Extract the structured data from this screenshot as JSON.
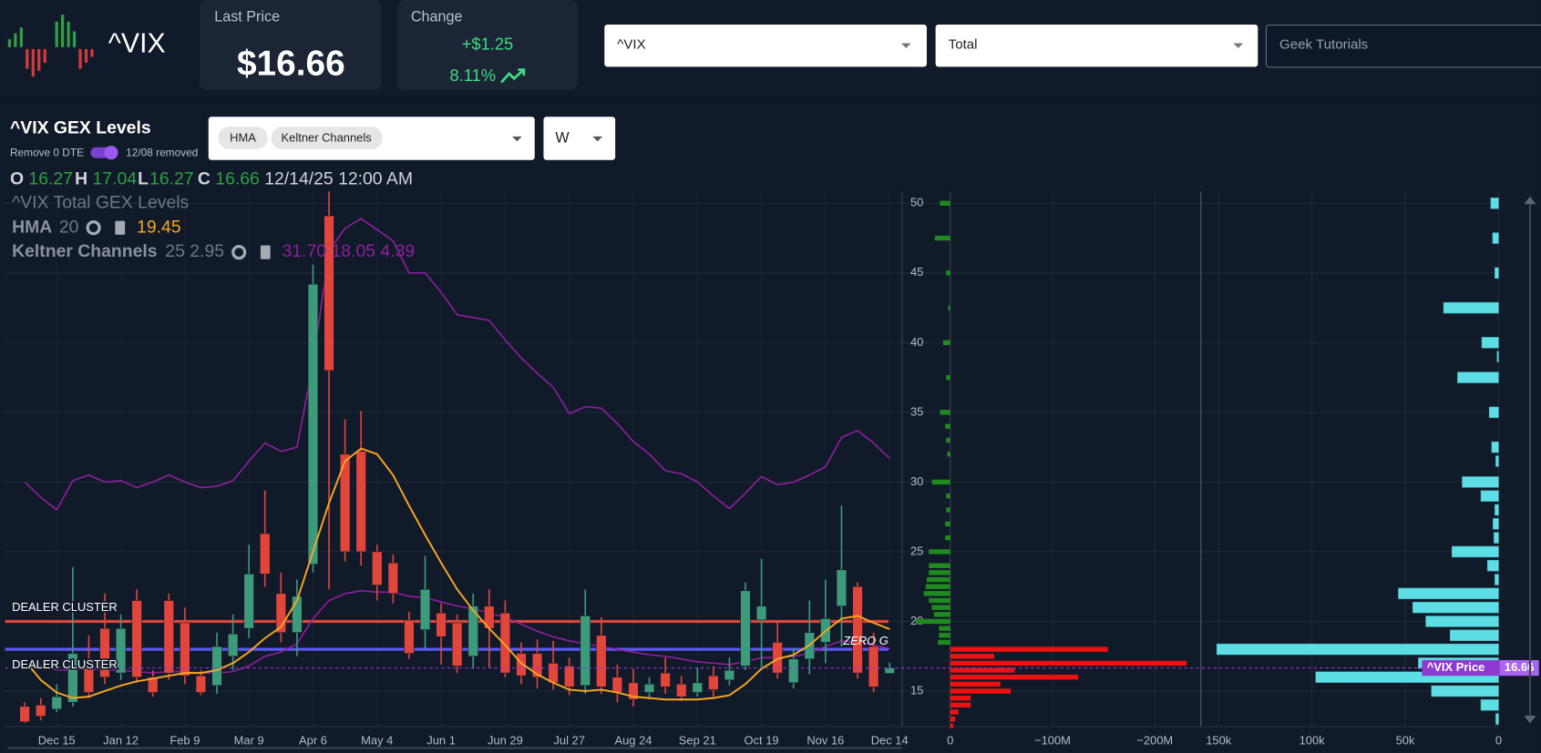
{
  "header": {
    "symbol": "^VIX",
    "last_price": {
      "label": "Last Price",
      "value": "$16.66"
    },
    "change": {
      "label": "Change",
      "amount": "+$1.25",
      "percent": "8.11%"
    }
  },
  "selectors": {
    "symbol": "^VIX",
    "mode": "Total",
    "channel": "Geek Tutorials"
  },
  "panel": {
    "title": "^VIX GEX Levels",
    "toggle_label": "Remove 0 DTE",
    "toggle_note": "12/08 removed",
    "indicators": [
      "HMA",
      "Keltner Channels"
    ],
    "interval": "W"
  },
  "chart_data": {
    "type": "candlestick",
    "ohlc_labels": [
      "O",
      "H",
      "L",
      "C"
    ],
    "date": "12/14/25 12:00 AM",
    "legend": {
      "title": "^VIX Total GEX Levels",
      "hma_name": "HMA",
      "hma_period": 20,
      "keltner_name": "Keltner Channels",
      "keltner_params": "25 2.95",
      "keltner_readout": "31.70 18.05 4.39"
    },
    "categories": [
      null,
      null,
      "Dec 15",
      null,
      null,
      null,
      "Jan 12",
      null,
      null,
      null,
      "Feb 9",
      null,
      null,
      null,
      "Mar 9",
      null,
      null,
      null,
      "Apr 6",
      null,
      null,
      null,
      "May 4",
      null,
      null,
      null,
      "Jun 1",
      null,
      null,
      null,
      "Jun 29",
      null,
      null,
      null,
      "Jul 27",
      null,
      null,
      null,
      "Aug 24",
      null,
      null,
      null,
      "Sep 21",
      null,
      null,
      null,
      "Oct 19",
      null,
      null,
      null,
      "Nov 16",
      null,
      null,
      null,
      "Dec 14"
    ],
    "open": [
      13.9,
      14.0,
      13.7,
      14.2,
      17.0,
      19.5,
      16.3,
      21.5,
      16.0,
      21.5,
      19.9,
      16.1,
      15.4,
      17.5,
      19.5,
      26.3,
      22.0,
      19.2,
      24.1,
      49.1,
      32.0,
      32.2,
      25.0,
      24.2,
      20.1,
      19.4,
      20.6,
      19.9,
      17.5,
      21.1,
      20.6,
      17.7,
      17.7,
      17.0,
      16.8,
      15.4,
      19.0,
      16.0,
      15.6,
      14.9,
      16.3,
      15.5,
      14.9,
      16.1,
      15.8,
      16.8,
      20.1,
      18.5,
      15.6,
      17.3,
      18.5,
      21.1,
      22.5,
      18.2,
      16.27
    ],
    "high": [
      14.2,
      14.5,
      15.5,
      23.9,
      19.0,
      22.0,
      20.5,
      22.3,
      16.5,
      22.0,
      21.0,
      16.5,
      19.2,
      20.5,
      25.5,
      29.4,
      23.5,
      23.0,
      45.6,
      60.1,
      34.5,
      35.1,
      25.5,
      24.8,
      20.7,
      24.7,
      21.3,
      20.5,
      22.0,
      22.3,
      21.5,
      18.5,
      18.7,
      18.6,
      17.4,
      22.3,
      20.3,
      16.9,
      16.6,
      16.0,
      17.4,
      16.1,
      16.7,
      16.8,
      17.4,
      22.8,
      24.5,
      20.0,
      18.1,
      21.5,
      23.0,
      28.3,
      22.8,
      19.2,
      17.04
    ],
    "low": [
      12.7,
      12.9,
      13.5,
      13.9,
      14.5,
      15.5,
      15.8,
      15.6,
      14.6,
      15.8,
      15.5,
      14.7,
      14.8,
      16.5,
      18.8,
      22.5,
      18.5,
      17.5,
      23.5,
      22.3,
      24.3,
      24.0,
      21.5,
      21.3,
      17.3,
      18.0,
      16.9,
      16.3,
      16.6,
      16.7,
      16.0,
      15.5,
      15.2,
      15.1,
      14.7,
      14.8,
      14.8,
      14.2,
      13.9,
      14.4,
      14.8,
      14.3,
      14.6,
      14.6,
      15.4,
      16.5,
      16.5,
      15.9,
      15.2,
      16.2,
      17.0,
      18.2,
      15.9,
      14.9,
      16.27
    ],
    "close": [
      12.8,
      13.2,
      14.6,
      17.7,
      14.9,
      16.0,
      19.5,
      16.0,
      14.9,
      16.3,
      16.1,
      14.9,
      18.2,
      19.1,
      23.4,
      23.4,
      19.2,
      21.8,
      44.2,
      38.0,
      25.0,
      25.0,
      22.6,
      22.0,
      17.7,
      22.3,
      18.9,
      16.8,
      21.1,
      19.5,
      16.3,
      16.1,
      16.0,
      15.6,
      15.3,
      20.4,
      15.3,
      14.9,
      14.4,
      15.5,
      15.3,
      14.6,
      15.6,
      15.1,
      16.5,
      22.2,
      21.1,
      16.3,
      17.3,
      19.2,
      20.2,
      23.7,
      16.3,
      15.3,
      16.66
    ],
    "up_color": "#3d9b7c",
    "down_color": "#e0463c",
    "hma": {
      "color": "#f5a623",
      "values": [
        17.2,
        15.8,
        14.9,
        14.5,
        14.6,
        15.0,
        15.4,
        15.7,
        15.9,
        16.1,
        16.3,
        16.3,
        16.5,
        17.0,
        17.8,
        18.8,
        19.6,
        21.5,
        25.0,
        28.5,
        31.5,
        32.4,
        32.0,
        30.5,
        28.3,
        26.2,
        24.2,
        22.3,
        20.8,
        19.5,
        18.3,
        17.0,
        16.2,
        15.6,
        15.1,
        15.0,
        15.1,
        14.9,
        14.6,
        14.5,
        14.4,
        14.4,
        14.4,
        14.5,
        14.7,
        15.5,
        16.6,
        17.3,
        17.6,
        18.3,
        19.3,
        20.2,
        20.4,
        19.9,
        19.45
      ]
    },
    "keltner": {
      "color": "#8e1f9e",
      "upper": [
        30.0,
        28.9,
        28.0,
        30.1,
        30.5,
        30.0,
        30.1,
        29.6,
        30.0,
        30.5,
        30.0,
        29.6,
        29.7,
        30.1,
        31.5,
        32.8,
        32.2,
        32.5,
        38.5,
        46.6,
        48.2,
        48.9,
        48.1,
        47.3,
        45.0,
        45.0,
        43.6,
        42.0,
        41.8,
        41.6,
        40.2,
        38.9,
        37.8,
        36.8,
        34.9,
        35.4,
        35.3,
        34.2,
        32.9,
        32.0,
        30.8,
        30.6,
        30.0,
        29.0,
        28.1,
        29.2,
        30.4,
        29.8,
        30.0,
        30.5,
        31.1,
        33.2,
        33.7,
        32.8,
        31.7
      ],
      "middle": [
        17.0,
        16.8,
        16.5,
        16.5,
        16.6,
        16.5,
        16.5,
        16.4,
        16.3,
        16.4,
        16.4,
        16.3,
        16.3,
        16.4,
        16.8,
        17.5,
        17.8,
        18.4,
        20.2,
        21.5,
        22.0,
        22.2,
        22.1,
        22.1,
        21.8,
        21.7,
        21.4,
        21.1,
        20.9,
        20.6,
        20.3,
        19.8,
        19.3,
        18.9,
        18.6,
        18.4,
        18.2,
        18.0,
        17.8,
        17.6,
        17.5,
        17.3,
        17.1,
        17.0,
        16.9,
        17.1,
        17.4,
        17.4,
        17.5,
        17.7,
        18.2,
        18.6,
        18.5,
        18.3,
        18.05
      ]
    },
    "levels": [
      {
        "value": 20,
        "color": "#d9463a",
        "label": "DEALER CLUSTER"
      },
      {
        "value": 18,
        "color": "#5a5af0",
        "label": "DEALER CLUSTER",
        "note": "ZERO G"
      }
    ],
    "price_tag": {
      "label": "^VIX Price",
      "color": "#8e3ad0"
    },
    "ylim": [
      12.46,
      50.85
    ],
    "yticks": [
      15,
      20,
      25,
      30,
      35,
      40,
      45,
      50
    ],
    "grid": true,
    "gex": {
      "strikes": [
        12.5,
        13,
        13.5,
        14,
        14.5,
        15,
        15.5,
        16,
        16.5,
        17,
        17.5,
        18,
        18.5,
        19,
        19.5,
        20,
        20.5,
        21,
        21.5,
        22,
        22.5,
        23,
        23.5,
        24,
        25,
        26,
        27,
        28,
        29,
        30,
        32,
        33,
        34,
        35,
        37.5,
        40,
        42.5,
        45,
        47.5,
        50
      ],
      "values": [
        -3000000,
        -5000000,
        -8000000,
        -20000000,
        -20000000,
        -59000000,
        -49000000,
        -125000000,
        -63000000,
        -231000000,
        -43000000,
        -154000000,
        12000000,
        11000000,
        11000000,
        34000000,
        16000000,
        18000000,
        21000000,
        26000000,
        24000000,
        23000000,
        21000000,
        21000000,
        21000000,
        5000000,
        5000000,
        4000000,
        4000000,
        18000000,
        3000000,
        4000000,
        5000000,
        10000000,
        4000000,
        7000000,
        2000000,
        4000000,
        15000000,
        10000000
      ],
      "positive_color": "#1f8a1f",
      "negative_color": "#ee1111",
      "xlim": [
        47000000,
        -245000000
      ],
      "xticks": [
        0,
        {
          "value": -100000000,
          "label": "−100M"
        },
        {
          "value": -200000000,
          "label": "−200M"
        }
      ]
    },
    "oi": {
      "strikes": [
        13,
        14,
        15,
        16,
        17,
        18,
        19,
        20,
        21,
        22,
        23,
        24,
        25,
        26,
        27,
        28,
        29,
        30,
        31.5,
        32.5,
        35,
        37.5,
        39,
        40,
        42.5,
        45,
        47.5,
        50
      ],
      "values": [
        1500,
        9500,
        36000,
        98000,
        43000,
        151000,
        26000,
        39000,
        46000,
        53700,
        2000,
        6000,
        25000,
        2500,
        3000,
        2000,
        9500,
        19500,
        1500,
        3700,
        5000,
        22000,
        800,
        9000,
        29500,
        2000,
        3200,
        4200
      ],
      "color": "#5fdde5",
      "xlim": [
        159500,
        0
      ],
      "xticks": [
        {
          "value": 150000,
          "label": "150k"
        },
        {
          "value": 100000,
          "label": "100k"
        },
        {
          "value": 50000,
          "label": "50k"
        },
        0
      ]
    }
  }
}
